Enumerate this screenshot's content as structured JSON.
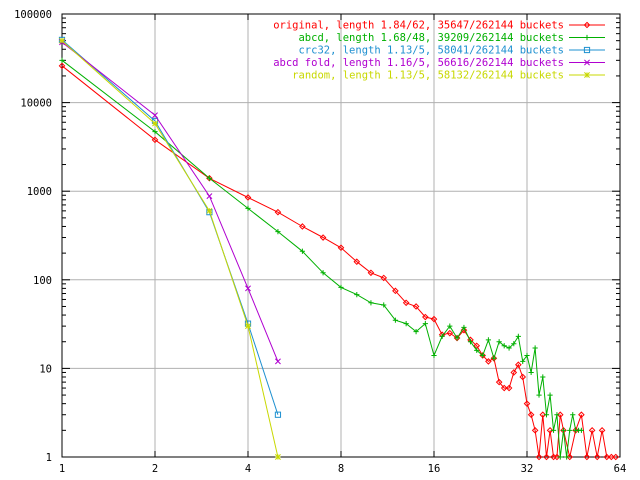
{
  "chart_data": {
    "type": "line",
    "title": "",
    "xlabel": "",
    "ylabel": "",
    "xscale": "log2",
    "yscale": "log10",
    "xlim": [
      1,
      64
    ],
    "ylim": [
      1,
      100000
    ],
    "grid": true,
    "legend_position": "top-right",
    "xtick_labels": [
      "1",
      "2",
      "4",
      "8",
      "16",
      "32",
      "64"
    ],
    "ytick_labels": [
      "1",
      "10",
      "100",
      "1000",
      "10000",
      "100000"
    ],
    "series": [
      {
        "name": "original, length 1.84/62, 35647/262144 buckets",
        "color": "#ff0000",
        "marker": "diamond",
        "x": [
          1,
          2,
          3,
          4,
          5,
          6,
          7,
          8,
          9,
          10,
          11,
          12,
          13,
          14,
          15,
          16,
          17,
          18,
          19,
          20,
          21,
          22,
          23,
          24,
          25,
          26,
          27,
          28,
          29,
          30,
          31,
          32,
          33,
          34,
          35,
          36,
          37,
          38,
          39,
          40,
          41,
          42,
          44,
          46,
          48,
          50,
          52,
          54,
          56,
          58,
          60,
          62
        ],
        "y": [
          26000,
          3800,
          1400,
          850,
          580,
          400,
          300,
          230,
          160,
          120,
          105,
          75,
          55,
          50,
          38,
          36,
          24,
          25,
          22,
          27,
          21,
          18,
          14,
          12,
          13,
          7,
          6,
          6,
          9,
          11,
          8,
          4,
          3,
          2,
          1,
          3,
          1,
          2,
          1,
          1,
          3,
          2,
          1,
          2,
          3,
          1,
          2,
          1,
          2,
          1,
          1,
          1
        ]
      },
      {
        "name": "abcd, length 1.68/48, 39209/262144 buckets",
        "color": "#00b000",
        "marker": "plus",
        "x": [
          1,
          2,
          3,
          4,
          5,
          6,
          7,
          8,
          9,
          10,
          11,
          12,
          13,
          14,
          15,
          16,
          17,
          18,
          19,
          20,
          21,
          22,
          23,
          24,
          25,
          26,
          27,
          28,
          29,
          30,
          31,
          32,
          33,
          34,
          35,
          36,
          37,
          38,
          39,
          40,
          41,
          42,
          43,
          44,
          45,
          46,
          47,
          48
        ],
        "y": [
          30000,
          4700,
          1400,
          640,
          350,
          210,
          120,
          82,
          68,
          55,
          52,
          35,
          32,
          26,
          32,
          14,
          23,
          30,
          22,
          29,
          20,
          16,
          14,
          21,
          13,
          20,
          18,
          17,
          19,
          23,
          12,
          14,
          9,
          17,
          5,
          8,
          3,
          5,
          2,
          3,
          1,
          2,
          1,
          2,
          3,
          2,
          2,
          2
        ]
      },
      {
        "name": "crc32, length 1.13/5, 58041/262144 buckets",
        "color": "#1e90d0",
        "marker": "square",
        "x": [
          1,
          2,
          3,
          4,
          5
        ],
        "y": [
          51000,
          6200,
          580,
          32,
          3
        ]
      },
      {
        "name": "abcd fold, length 1.16/5, 56616/262144 buckets",
        "color": "#b000d0",
        "marker": "cross",
        "x": [
          1,
          2,
          3,
          4,
          5
        ],
        "y": [
          48000,
          7200,
          880,
          80,
          12
        ]
      },
      {
        "name": "random, length 1.13/5, 58132/262144 buckets",
        "color": "#c8d800",
        "marker": "star",
        "x": [
          1,
          2,
          3,
          4,
          5
        ],
        "y": [
          50000,
          5800,
          600,
          30,
          1
        ]
      }
    ]
  }
}
